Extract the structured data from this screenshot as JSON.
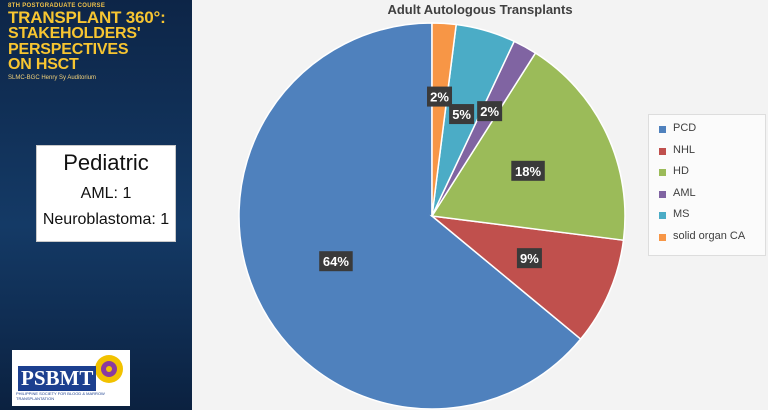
{
  "slide": {
    "course": "8TH POSTGRADUATE COURSE",
    "title_lines": [
      "TRANSPLANT 360°:",
      "STAKEHOLDERS'",
      "PERSPECTIVES",
      "ON HSCT"
    ],
    "venue": "SLMC-BGC Henry Sy Auditorium",
    "pediatric": {
      "title": "Pediatric",
      "lines": [
        "AML: 1",
        "Neuroblastoma: 1"
      ]
    },
    "logo": {
      "text": "PSBMT",
      "subtitle": "PHILIPPINE SOCIETY FOR BLOOD & MARROW TRANSPLANTATION"
    }
  },
  "chart_data": {
    "type": "pie",
    "title": "Adult Autologous Transplants",
    "legend_position": "right",
    "slices": [
      {
        "label": "PCD",
        "value": 64,
        "display": "64%",
        "color": "#4f81bd"
      },
      {
        "label": "NHL",
        "value": 9,
        "display": "9%",
        "color": "#c0504d"
      },
      {
        "label": "HD",
        "value": 18,
        "display": "18%",
        "color": "#9bbb59"
      },
      {
        "label": "AML",
        "value": 2,
        "display": "2%",
        "color": "#8064a2"
      },
      {
        "label": "MS",
        "value": 5,
        "display": "5%",
        "color": "#4bacc6"
      },
      {
        "label": "solid organ CA",
        "value": 2,
        "display": "2%",
        "color": "#f79646"
      }
    ]
  }
}
